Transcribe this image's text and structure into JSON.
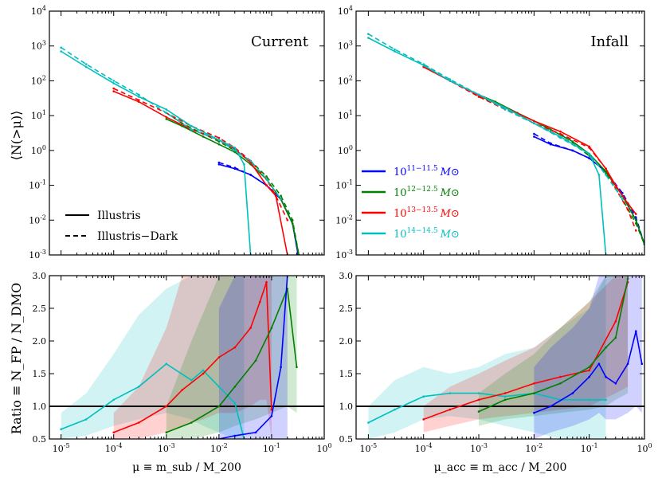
{
  "colors": {
    "blue": "#0000ff",
    "green": "#007f00",
    "red": "#ff0000",
    "cyan": "#00bfbf",
    "black": "#000000"
  },
  "y_label_top": "⟨N(>μ)⟩",
  "y_label_bottom": "Ratio ≡ N_FP / N_DMO",
  "legend_styles": [
    {
      "label": "Illustris",
      "dash": false
    },
    {
      "label": "Illustris−Dark",
      "dash": true
    }
  ],
  "legend_mass": [
    {
      "label": "10^{11−11.5} M⊙",
      "color": "blue"
    },
    {
      "label": "10^{12−12.5} M⊙",
      "color": "green"
    },
    {
      "label": "10^{13−13.5} M⊙",
      "color": "red"
    },
    {
      "label": "10^{14−14.5} M⊙",
      "color": "cyan"
    }
  ],
  "chart_data": [
    {
      "id": "top-left",
      "type": "line",
      "title": "Current",
      "xscale": "log",
      "yscale": "log",
      "xlim": [
        6e-06,
        1
      ],
      "ylim": [
        0.001,
        10000
      ],
      "x_ticks": [
        "10^-5",
        "10^-4",
        "10^-3",
        "10^-2",
        "10^-1",
        "10^0"
      ],
      "y_ticks": [
        "10^-3",
        "10^-2",
        "10^-1",
        "10^0",
        "10^1",
        "10^2",
        "10^3",
        "10^4"
      ],
      "series": [
        {
          "name": "10^11-11.5 fp",
          "color": "blue",
          "dash": false,
          "x": [
            0.01,
            0.02,
            0.04,
            0.08,
            0.15,
            0.25,
            0.32
          ],
          "y": [
            0.4,
            0.3,
            0.2,
            0.1,
            0.04,
            0.008,
            0.001
          ]
        },
        {
          "name": "10^11-11.5 dmo",
          "color": "blue",
          "dash": true,
          "x": [
            0.01,
            0.02,
            0.04,
            0.08,
            0.15,
            0.25,
            0.32
          ],
          "y": [
            0.45,
            0.32,
            0.2,
            0.1,
            0.04,
            0.008,
            0.001
          ]
        },
        {
          "name": "10^12-12.5 fp",
          "color": "green",
          "dash": false,
          "x": [
            0.001,
            0.002,
            0.005,
            0.01,
            0.02,
            0.04,
            0.08,
            0.15,
            0.25,
            0.33
          ],
          "y": [
            8,
            5,
            2.5,
            1.5,
            0.9,
            0.4,
            0.15,
            0.04,
            0.008,
            0.001
          ]
        },
        {
          "name": "10^12-12.5 dmo",
          "color": "green",
          "dash": true,
          "x": [
            0.001,
            0.002,
            0.005,
            0.01,
            0.02,
            0.04,
            0.08,
            0.15,
            0.25,
            0.33
          ],
          "y": [
            12,
            6,
            3,
            1.8,
            1,
            0.5,
            0.18,
            0.05,
            0.01,
            0.001
          ]
        },
        {
          "name": "10^13-13.5 fp",
          "color": "red",
          "dash": false,
          "x": [
            0.0001,
            0.0003,
            0.001,
            0.003,
            0.01,
            0.02,
            0.04,
            0.08,
            0.12,
            0.2
          ],
          "y": [
            50,
            25,
            9,
            4,
            2,
            1.1,
            0.45,
            0.1,
            0.05,
            0.001
          ]
        },
        {
          "name": "10^13-13.5 dmo",
          "color": "red",
          "dash": true,
          "x": [
            0.0001,
            0.0003,
            0.001,
            0.003,
            0.01,
            0.02,
            0.04,
            0.08,
            0.12,
            0.2
          ],
          "y": [
            60,
            28,
            12,
            5,
            2.3,
            1.2,
            0.5,
            0.15,
            0.05,
            0.01
          ]
        },
        {
          "name": "10^14-14.5 fp",
          "color": "cyan",
          "dash": false,
          "x": [
            1e-05,
            3e-05,
            0.0001,
            0.0003,
            0.001,
            0.003,
            0.01,
            0.02,
            0.03,
            0.04
          ],
          "y": [
            700,
            250,
            85,
            35,
            15,
            5,
            2,
            1.2,
            0.4,
            0.001
          ]
        },
        {
          "name": "10^14-14.5 dmo",
          "color": "cyan",
          "dash": true,
          "x": [
            1e-05,
            3e-05,
            0.0001,
            0.0003,
            0.001,
            0.003,
            0.01,
            0.02,
            0.04,
            0.08,
            0.15
          ],
          "y": [
            900,
            300,
            100,
            40,
            12,
            4,
            2,
            1,
            0.5,
            0.15,
            0.04
          ]
        }
      ]
    },
    {
      "id": "top-right",
      "type": "line",
      "title": "Infall",
      "xscale": "log",
      "yscale": "log",
      "xlim": [
        6e-06,
        1
      ],
      "ylim": [
        0.001,
        10000
      ],
      "x_ticks": [
        "10^-5",
        "10^-4",
        "10^-3",
        "10^-2",
        "10^-1",
        "10^0"
      ],
      "y_ticks": [
        "10^-3",
        "10^-2",
        "10^-1",
        "10^0",
        "10^1",
        "10^2",
        "10^3",
        "10^4"
      ],
      "series": [
        {
          "name": "10^11-11.5 fp",
          "color": "blue",
          "dash": false,
          "x": [
            0.01,
            0.02,
            0.05,
            0.1,
            0.2,
            0.4,
            0.7,
            1
          ],
          "y": [
            2.5,
            1.5,
            1,
            0.6,
            0.25,
            0.05,
            0.01,
            0.002
          ]
        },
        {
          "name": "10^11-11.5 dmo",
          "color": "blue",
          "dash": true,
          "x": [
            0.01,
            0.02,
            0.05,
            0.1,
            0.2,
            0.4,
            0.7,
            1
          ],
          "y": [
            3,
            1.6,
            1,
            0.6,
            0.25,
            0.06,
            0.012,
            0.002
          ]
        },
        {
          "name": "10^12-12.5 fp",
          "color": "green",
          "dash": false,
          "x": [
            0.001,
            0.002,
            0.005,
            0.01,
            0.02,
            0.05,
            0.1,
            0.2,
            0.4,
            0.7,
            1
          ],
          "y": [
            40,
            25,
            12,
            7,
            4,
            1.8,
            0.8,
            0.25,
            0.05,
            0.01,
            0.002
          ]
        },
        {
          "name": "10^12-12.5 dmo",
          "color": "green",
          "dash": true,
          "x": [
            0.001,
            0.002,
            0.005,
            0.01,
            0.02,
            0.05,
            0.1,
            0.2,
            0.4,
            0.7,
            1
          ],
          "y": [
            35,
            22,
            11,
            6,
            3.5,
            1.6,
            0.7,
            0.22,
            0.04,
            0.008,
            0.002
          ]
        },
        {
          "name": "10^13-13.5 fp",
          "color": "red",
          "dash": false,
          "x": [
            0.0001,
            0.0003,
            0.001,
            0.003,
            0.01,
            0.03,
            0.1,
            0.2,
            0.3,
            0.5,
            0.7
          ],
          "y": [
            250,
            100,
            38,
            17,
            7,
            3.5,
            1.3,
            0.3,
            0.1,
            0.03,
            0.015
          ]
        },
        {
          "name": "10^13-13.5 dmo",
          "color": "red",
          "dash": true,
          "x": [
            0.0001,
            0.0003,
            0.001,
            0.003,
            0.01,
            0.03,
            0.1,
            0.2,
            0.3,
            0.5,
            0.7
          ],
          "y": [
            250,
            100,
            35,
            15,
            6,
            3,
            1.2,
            0.3,
            0.08,
            0.02,
            0.005
          ]
        },
        {
          "name": "10^14-14.5 fp",
          "color": "cyan",
          "dash": false,
          "x": [
            1e-05,
            3e-05,
            0.0001,
            0.0003,
            0.001,
            0.003,
            0.01,
            0.03,
            0.1,
            0.15,
            0.2
          ],
          "y": [
            1700,
            700,
            280,
            100,
            40,
            17,
            6,
            2.5,
            0.8,
            0.2,
            0.001
          ]
        },
        {
          "name": "10^14-14.5 dmo",
          "color": "cyan",
          "dash": true,
          "x": [
            1e-05,
            3e-05,
            0.0001,
            0.0003,
            0.001,
            0.003,
            0.01,
            0.03,
            0.1,
            0.2,
            0.4
          ],
          "y": [
            2200,
            800,
            300,
            110,
            40,
            15,
            6,
            2.3,
            0.8,
            0.2,
            0.04
          ]
        }
      ]
    },
    {
      "id": "bottom-left",
      "type": "area",
      "xscale": "log",
      "yscale": "linear",
      "xlabel": "μ ≡ m_sub / M_200",
      "xlim": [
        6e-06,
        1
      ],
      "ylim": [
        0.5,
        3.0
      ],
      "x_ticks": [
        "10^-5",
        "10^-4",
        "10^-3",
        "10^-2",
        "10^-1",
        "10^0"
      ],
      "y_ticks": [
        "0.5",
        "1.0",
        "1.5",
        "2.0",
        "2.5",
        "3.0"
      ],
      "reference_line": 1.0,
      "series": [
        {
          "name": "cyan",
          "color": "cyan",
          "x": [
            1e-05,
            3e-05,
            0.0001,
            0.0003,
            0.001,
            0.003,
            0.005,
            0.01,
            0.02,
            0.03
          ],
          "y": [
            0.65,
            0.8,
            1.1,
            1.3,
            1.65,
            1.4,
            1.55,
            1.3,
            1.05,
            0.5
          ],
          "lower": [
            0.5,
            0.55,
            0.7,
            0.8,
            0.9,
            0.8,
            0.7,
            0.6,
            0.5,
            0.5
          ],
          "upper": [
            0.9,
            1.2,
            1.8,
            2.4,
            2.8,
            3.0,
            3.0,
            3.0,
            3.0,
            3.0
          ]
        },
        {
          "name": "red",
          "color": "red",
          "x": [
            0.0001,
            0.0003,
            0.001,
            0.002,
            0.005,
            0.01,
            0.02,
            0.04,
            0.06,
            0.08,
            0.1
          ],
          "y": [
            0.6,
            0.75,
            1.0,
            1.25,
            1.5,
            1.75,
            1.9,
            2.2,
            2.6,
            2.9,
            0.95
          ],
          "lower": [
            0.5,
            0.5,
            0.6,
            0.7,
            0.8,
            0.9,
            0.9,
            1.0,
            1.1,
            1.1,
            0.5
          ],
          "upper": [
            0.9,
            1.3,
            2.2,
            3.0,
            3.0,
            3.0,
            3.0,
            3.0,
            3.0,
            3.0,
            3.0
          ]
        },
        {
          "name": "green",
          "color": "green",
          "x": [
            0.001,
            0.003,
            0.01,
            0.02,
            0.05,
            0.1,
            0.2,
            0.3
          ],
          "y": [
            0.6,
            0.75,
            1.0,
            1.3,
            1.7,
            2.2,
            2.8,
            1.6
          ],
          "lower": [
            0.5,
            0.5,
            0.6,
            0.7,
            0.8,
            0.9,
            1.0,
            0.9
          ],
          "upper": [
            1.0,
            2.0,
            3.0,
            3.0,
            3.0,
            3.0,
            3.0,
            3.0
          ]
        },
        {
          "name": "blue",
          "color": "blue",
          "x": [
            0.01,
            0.02,
            0.05,
            0.1,
            0.15,
            0.2
          ],
          "y": [
            0.5,
            0.55,
            0.6,
            0.85,
            1.6,
            3.0
          ],
          "lower": [
            0.5,
            0.5,
            0.5,
            0.5,
            0.5,
            0.5
          ],
          "upper": [
            2.5,
            3.0,
            3.0,
            3.0,
            3.0,
            3.0
          ]
        }
      ]
    },
    {
      "id": "bottom-right",
      "type": "area",
      "xscale": "log",
      "yscale": "linear",
      "xlabel": "μ_acc ≡ m_acc / M_200",
      "xlim": [
        6e-06,
        1
      ],
      "ylim": [
        0.5,
        3.0
      ],
      "x_ticks": [
        "10^-5",
        "10^-4",
        "10^-3",
        "10^-2",
        "10^-1",
        "10^0"
      ],
      "y_ticks": [
        "0.5",
        "1.0",
        "1.5",
        "2.0",
        "2.5",
        "3.0"
      ],
      "reference_line": 1.0,
      "series": [
        {
          "name": "cyan",
          "color": "cyan",
          "x": [
            1e-05,
            3e-05,
            0.0001,
            0.0003,
            0.001,
            0.003,
            0.01,
            0.03,
            0.1,
            0.2
          ],
          "y": [
            0.75,
            0.95,
            1.15,
            1.2,
            1.2,
            1.15,
            1.2,
            1.1,
            1.1,
            1.1
          ],
          "lower": [
            0.5,
            0.6,
            0.8,
            0.85,
            0.8,
            0.7,
            0.6,
            0.5,
            0.5,
            0.5
          ],
          "upper": [
            1.0,
            1.4,
            1.6,
            1.5,
            1.6,
            1.8,
            1.9,
            2.2,
            2.5,
            3.0
          ]
        },
        {
          "name": "red",
          "color": "red",
          "x": [
            0.0001,
            0.0003,
            0.001,
            0.003,
            0.01,
            0.03,
            0.1,
            0.3,
            0.5
          ],
          "y": [
            0.8,
            0.95,
            1.1,
            1.2,
            1.35,
            1.45,
            1.55,
            2.3,
            2.9
          ],
          "lower": [
            0.6,
            0.7,
            0.8,
            0.85,
            0.9,
            0.95,
            1.0,
            1.2,
            1.3
          ],
          "upper": [
            1.0,
            1.3,
            1.5,
            1.7,
            1.9,
            2.2,
            2.6,
            3.0,
            3.0
          ]
        },
        {
          "name": "green",
          "color": "green",
          "x": [
            0.001,
            0.003,
            0.01,
            0.03,
            0.1,
            0.2,
            0.3,
            0.5
          ],
          "y": [
            0.92,
            1.1,
            1.2,
            1.35,
            1.6,
            1.9,
            2.05,
            2.95
          ],
          "lower": [
            0.7,
            0.8,
            0.85,
            0.9,
            0.95,
            1.0,
            1.1,
            1.2
          ],
          "upper": [
            1.2,
            1.5,
            1.8,
            2.2,
            2.6,
            3.0,
            3.0,
            3.0
          ]
        },
        {
          "name": "blue",
          "color": "blue",
          "x": [
            0.01,
            0.02,
            0.05,
            0.1,
            0.15,
            0.2,
            0.3,
            0.5,
            0.7,
            0.9
          ],
          "y": [
            0.9,
            1.0,
            1.2,
            1.45,
            1.65,
            1.45,
            1.35,
            1.65,
            2.15,
            1.65
          ],
          "lower": [
            0.5,
            0.6,
            0.7,
            0.8,
            0.9,
            0.8,
            0.8,
            0.9,
            1.0,
            0.9
          ],
          "upper": [
            1.6,
            1.9,
            2.2,
            2.5,
            3.0,
            3.0,
            3.0,
            3.0,
            3.0,
            3.0
          ]
        }
      ]
    }
  ]
}
